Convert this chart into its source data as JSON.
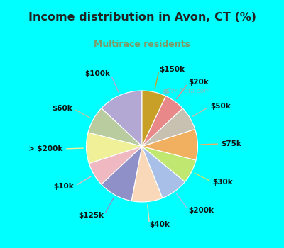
{
  "title": "Income distribution in Avon, CT (%)",
  "subtitle": "Multirace residents",
  "title_color": "#222222",
  "subtitle_color": "#7a9a6a",
  "bg_color_outer": "#00ffff",
  "bg_color_inner": "#e0f0e8",
  "watermark": "City-Data.com",
  "labels": [
    "$100k",
    "$60k",
    "> $200k",
    "$10k",
    "$125k",
    "$40k",
    "$200k",
    "$30k",
    "$75k",
    "$50k",
    "$20k",
    "$150k"
  ],
  "values": [
    13,
    8,
    9,
    7,
    10,
    9,
    8,
    7,
    9,
    7,
    6,
    7
  ],
  "colors": [
    "#b3a8d4",
    "#b8cca0",
    "#f0f098",
    "#f0b8c0",
    "#9090c8",
    "#f8d8b8",
    "#a8c0e8",
    "#c0e870",
    "#f0b060",
    "#c8c0b0",
    "#e88888",
    "#c8a028"
  ],
  "label_fontsize": 7.5,
  "startangle": 90,
  "label_color": "#111111"
}
